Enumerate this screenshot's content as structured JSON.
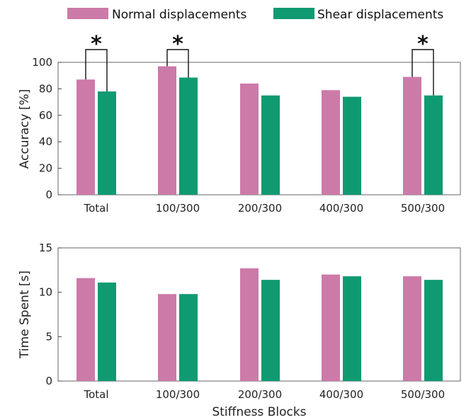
{
  "legend": {
    "normal": "Normal displacements",
    "shear": "Shear displacements"
  },
  "colors": {
    "normal": "#cc7aa8",
    "shear": "#0f9a72"
  },
  "shared_xlabel": "Stiffness Blocks",
  "chart_data": [
    {
      "type": "bar",
      "categories": [
        "Total",
        "100/300",
        "200/300",
        "400/300",
        "500/300"
      ],
      "series": [
        {
          "name": "Normal displacements",
          "values": [
            87,
            97,
            84,
            79,
            89
          ]
        },
        {
          "name": "Shear displacements",
          "values": [
            78,
            88.5,
            75,
            74,
            75
          ]
        }
      ],
      "ylabel": "Accuracy [%]",
      "ylim": [
        0,
        100
      ],
      "yticks": [
        0,
        20,
        40,
        60,
        80,
        100
      ],
      "significance": [
        {
          "category": "Total",
          "label": "*"
        },
        {
          "category": "100/300",
          "label": "*"
        },
        {
          "category": "500/300",
          "label": "*"
        }
      ]
    },
    {
      "type": "bar",
      "categories": [
        "Total",
        "100/300",
        "200/300",
        "400/300",
        "500/300"
      ],
      "series": [
        {
          "name": "Normal displacements",
          "values": [
            11.6,
            9.8,
            12.7,
            12.0,
            11.8
          ]
        },
        {
          "name": "Shear displacements",
          "values": [
            11.1,
            9.8,
            11.4,
            11.8,
            11.4
          ]
        }
      ],
      "ylabel": "Time Spent [s]",
      "xlabel": "Stiffness Blocks",
      "ylim": [
        0,
        15
      ],
      "yticks": [
        0,
        5,
        10,
        15
      ]
    }
  ]
}
